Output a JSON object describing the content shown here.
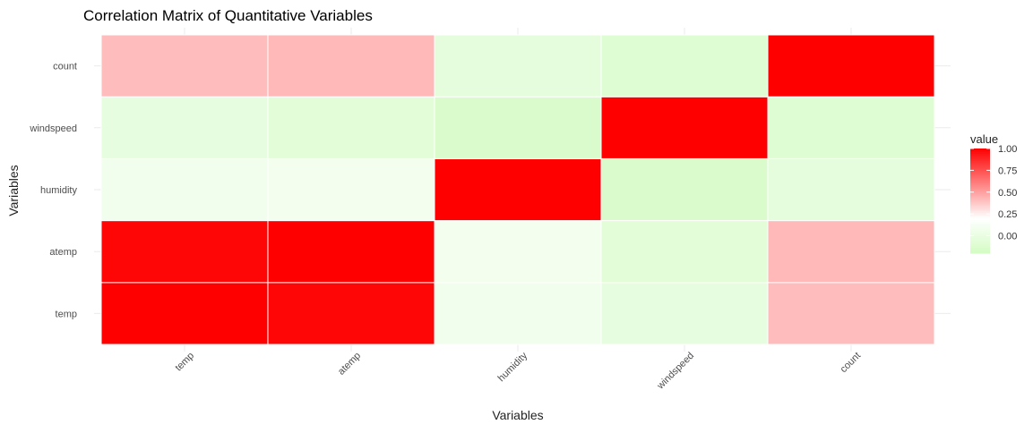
{
  "chart_data": {
    "type": "heatmap",
    "title": "Correlation Matrix of Quantitative Variables",
    "xlabel": "Variables",
    "ylabel": "Variables",
    "x_categories": [
      "temp",
      "atemp",
      "humidity",
      "windspeed",
      "count"
    ],
    "y_categories": [
      "temp",
      "atemp",
      "humidity",
      "windspeed",
      "count"
    ],
    "values": [
      [
        1.0,
        0.98,
        0.08,
        -0.02,
        0.41
      ],
      [
        0.98,
        1.0,
        0.09,
        -0.06,
        0.42
      ],
      [
        0.08,
        0.09,
        1.0,
        -0.14,
        -0.04
      ],
      [
        -0.02,
        -0.06,
        -0.14,
        1.0,
        -0.1
      ],
      [
        0.41,
        0.42,
        -0.04,
        -0.1,
        1.0
      ]
    ],
    "legend": {
      "title": "value",
      "ticks": [
        "1.00",
        "0.75",
        "0.50",
        "0.25",
        "0.00"
      ],
      "tick_values": [
        1.0,
        0.75,
        0.5,
        0.25,
        0.0
      ],
      "range": [
        -0.2,
        1.0
      ],
      "position": "right"
    },
    "color_scale": {
      "low": "#d4fcc4",
      "mid": "#ffffff",
      "high": "#ff0000",
      "midpoint": 0.2
    },
    "grid": true
  }
}
